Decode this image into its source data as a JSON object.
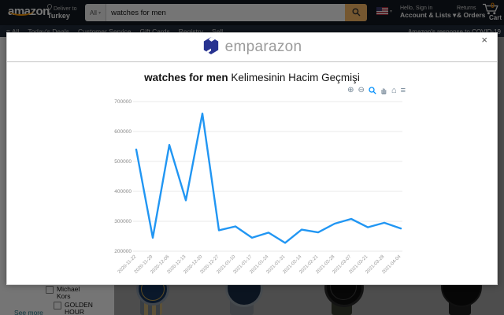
{
  "amazon": {
    "logo_text": "amazon",
    "deliver_to": {
      "line1": "Deliver to",
      "line2": "Turkey"
    },
    "search": {
      "category": "All",
      "caret": "▾",
      "value": "watches for men"
    },
    "language": {
      "caret": "▾"
    },
    "account": {
      "line1": "Hello, Sign in",
      "line2": "Account & Lists ▾"
    },
    "returns": {
      "line1": "Returns",
      "line2": "& Orders"
    },
    "cart": {
      "count": "0",
      "label": "Cart"
    },
    "nav": {
      "items": [
        {
          "label": "≡ All"
        },
        {
          "label": "Today's Deals"
        },
        {
          "label": "Customer Service"
        },
        {
          "label": "Gift Cards"
        },
        {
          "label": "Registry"
        },
        {
          "label": "Sell"
        }
      ],
      "covid_link": "Amazon's response to COVID-19"
    },
    "filters": {
      "brand1": "Michael Kors",
      "brand2": "GOLDEN HOUR",
      "see_more": "See more"
    }
  },
  "modal": {
    "brand_name": "emparazon",
    "close_label": "×",
    "title": {
      "keyword": "watches for men",
      "suffix": " Kelimesinin Hacim Geçmişi"
    }
  },
  "chart_data": {
    "type": "line",
    "title": "watches for men Kelimesinin Hacim Geçmişi",
    "x": [
      "2020-11-22",
      "2020-11-29",
      "2020-12-06",
      "2020-12-13",
      "2020-12-20",
      "2020-12-27",
      "2021-01-10",
      "2021-01-17",
      "2021-01-24",
      "2021-01-31",
      "2021-02-14",
      "2021-02-21",
      "2021-02-28",
      "2021-03-07",
      "2021-03-21",
      "2021-03-28",
      "2021-04-04"
    ],
    "series": [
      {
        "name": "Hacim",
        "values": [
          540000,
          245000,
          555000,
          370000,
          660000,
          270000,
          283000,
          245000,
          262000,
          228000,
          272000,
          263000,
          292000,
          308000,
          280000,
          295000,
          276000
        ]
      }
    ],
    "ylim": [
      200000,
      700000
    ],
    "yticks": [
      200000,
      300000,
      400000,
      500000,
      600000,
      700000
    ],
    "xlabel": "",
    "ylabel": "",
    "grid": true,
    "legend": "none",
    "line_color": "#2196f3",
    "grid_color": "#e8e8e8",
    "tick_color": "#8a8a8a",
    "toolbar_icons": [
      "zoom-in",
      "zoom-out",
      "selection-zoom",
      "pan",
      "home",
      "menu"
    ],
    "toolbar_glyphs": {
      "zoom_in": "⊕",
      "zoom_out": "⊖",
      "home": "⌂",
      "menu": "≡"
    }
  }
}
